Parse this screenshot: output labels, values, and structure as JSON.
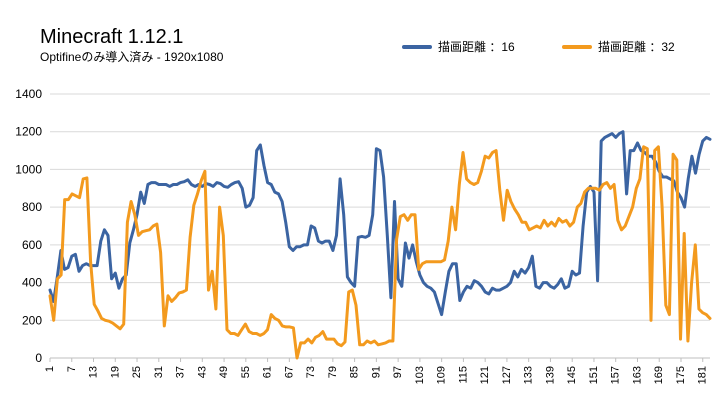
{
  "chart_data": {
    "type": "line",
    "title": "Minecraft 1.12.1",
    "subtitle": "Optifineのみ導入済み - 1920x1080",
    "ylim": [
      0,
      1400
    ],
    "yticks": [
      0,
      200,
      400,
      600,
      800,
      1000,
      1200,
      1400
    ],
    "x_ticks": [
      "1",
      "7",
      "13",
      "19",
      "25",
      "31",
      "37",
      "43",
      "49",
      "55",
      "61",
      "67",
      "73",
      "79",
      "85",
      "91",
      "97",
      "103",
      "109",
      "115",
      "121",
      "127",
      "133",
      "139",
      "145",
      "151",
      "157",
      "163",
      "169",
      "175",
      "181"
    ],
    "x_range": [
      1,
      183
    ],
    "grid": true,
    "legend_position": "top-right",
    "series": [
      {
        "name": "描画距離 ：16",
        "color": "#3B64A2",
        "values": [
          360,
          300,
          430,
          570,
          470,
          480,
          540,
          550,
          460,
          490,
          500,
          490,
          490,
          490,
          620,
          680,
          650,
          420,
          450,
          370,
          420,
          440,
          610,
          680,
          760,
          880,
          820,
          920,
          930,
          930,
          920,
          920,
          920,
          910,
          920,
          920,
          930,
          935,
          945,
          920,
          910,
          920,
          910,
          925,
          920,
          910,
          930,
          925,
          910,
          905,
          920,
          930,
          935,
          900,
          800,
          810,
          850,
          1100,
          1130,
          1020,
          930,
          920,
          880,
          870,
          830,
          720,
          590,
          570,
          590,
          590,
          600,
          600,
          700,
          690,
          620,
          610,
          620,
          620,
          570,
          650,
          950,
          760,
          430,
          400,
          380,
          640,
          645,
          640,
          650,
          760,
          1110,
          1100,
          960,
          650,
          320,
          830,
          420,
          380,
          610,
          530,
          600,
          510,
          440,
          400,
          380,
          370,
          350,
          290,
          230,
          350,
          460,
          500,
          500,
          305,
          350,
          380,
          370,
          410,
          400,
          380,
          350,
          340,
          370,
          360,
          360,
          370,
          380,
          400,
          460,
          430,
          470,
          450,
          480,
          540,
          380,
          370,
          400,
          400,
          380,
          370,
          390,
          420,
          370,
          380,
          460,
          440,
          450,
          700,
          880,
          910,
          880,
          410,
          1150,
          1170,
          1180,
          1190,
          1170,
          1190,
          1200,
          870,
          1100,
          1100,
          1140,
          1100,
          1090,
          1070,
          1070,
          1040,
          990,
          960,
          960,
          950,
          940,
          880,
          850,
          800,
          950,
          1070,
          980,
          1080,
          1150,
          1170,
          1160
        ]
      },
      {
        "name": "描画距離 ：32",
        "color": "#F39A1E",
        "values": [
          330,
          200,
          420,
          440,
          840,
          840,
          870,
          860,
          850,
          950,
          955,
          510,
          285,
          250,
          210,
          200,
          195,
          185,
          170,
          155,
          180,
          720,
          830,
          760,
          650,
          670,
          675,
          680,
          700,
          710,
          560,
          170,
          330,
          300,
          320,
          345,
          350,
          360,
          640,
          810,
          870,
          940,
          990,
          360,
          460,
          260,
          800,
          650,
          150,
          130,
          130,
          120,
          150,
          180,
          140,
          130,
          130,
          120,
          130,
          150,
          230,
          210,
          200,
          170,
          165,
          165,
          160,
          0,
          80,
          80,
          100,
          80,
          110,
          120,
          140,
          100,
          100,
          100,
          75,
          65,
          85,
          350,
          360,
          280,
          70,
          70,
          90,
          80,
          90,
          70,
          75,
          80,
          90,
          90,
          630,
          750,
          760,
          730,
          760,
          760,
          470,
          500,
          510,
          510,
          510,
          510,
          510,
          520,
          620,
          800,
          680,
          920,
          1090,
          950,
          930,
          920,
          930,
          990,
          1070,
          1060,
          1090,
          1100,
          890,
          730,
          890,
          830,
          790,
          760,
          720,
          720,
          680,
          690,
          700,
          690,
          730,
          700,
          720,
          700,
          740,
          720,
          730,
          700,
          720,
          800,
          820,
          880,
          900,
          900,
          900,
          890,
          920,
          930,
          900,
          920,
          730,
          680,
          700,
          750,
          800,
          900,
          950,
          1120,
          1110,
          200,
          1100,
          1120,
          800,
          280,
          230,
          1080,
          1050,
          100,
          660,
          90,
          400,
          600,
          260,
          240,
          230,
          210
        ]
      }
    ]
  }
}
